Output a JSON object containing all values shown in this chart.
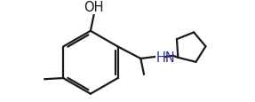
{
  "bg_color": "#ffffff",
  "line_color": "#1a1a1a",
  "hn_color": "#3333aa",
  "line_width": 1.6,
  "font_size_label": 10.5,
  "font_size_hn": 10.5
}
